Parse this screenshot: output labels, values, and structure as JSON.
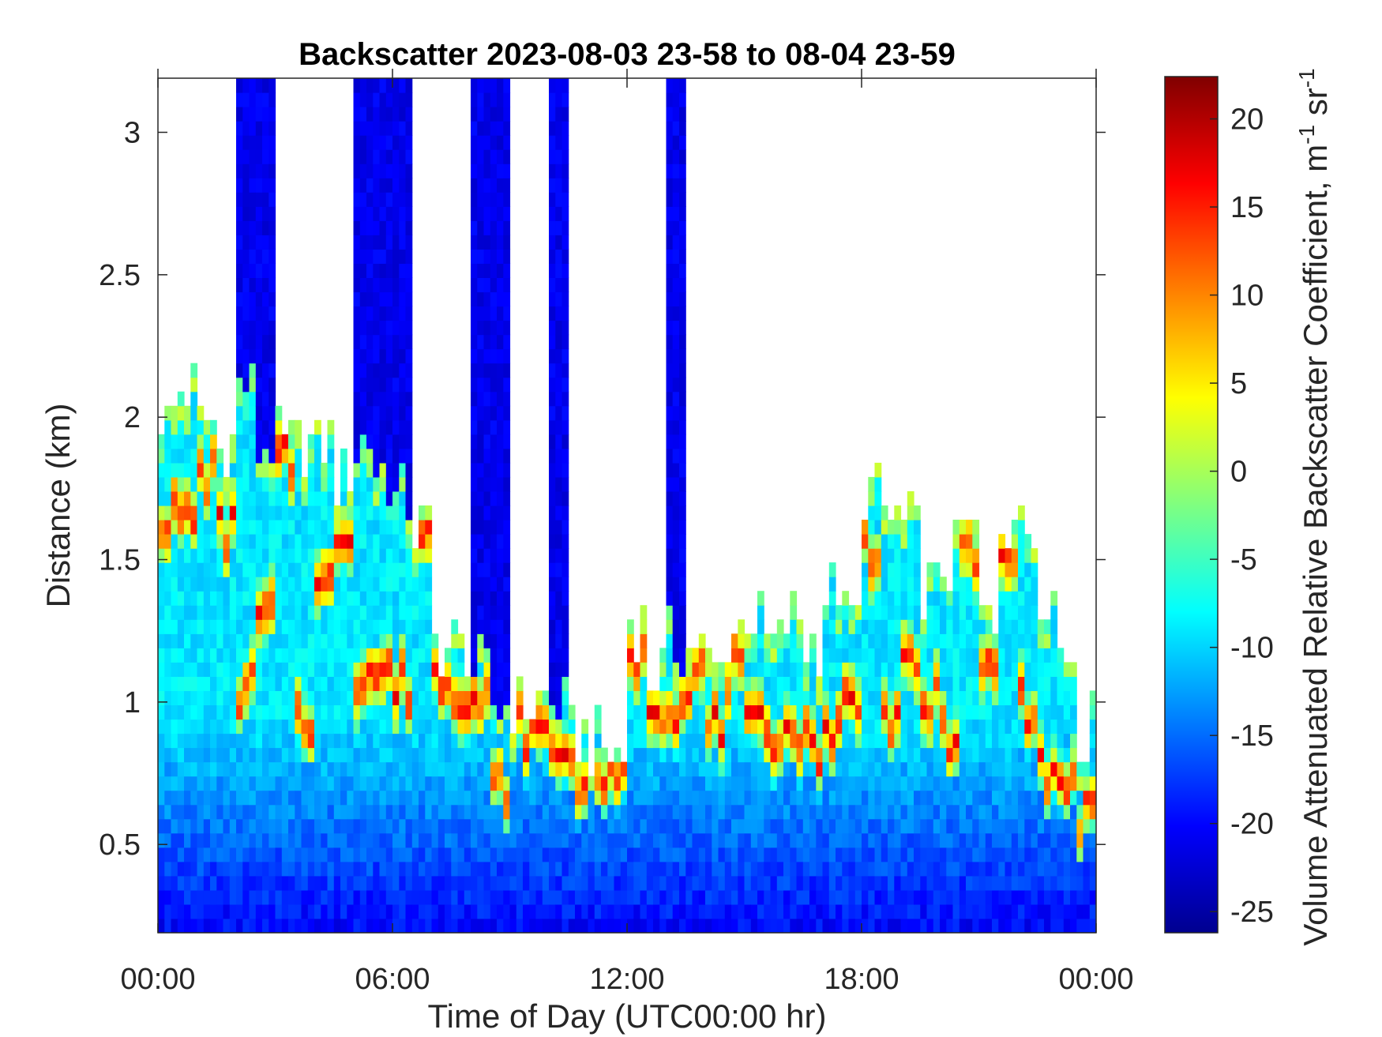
{
  "chart_data": {
    "type": "heatmap",
    "title": "Backscatter 2023-08-03 23-58 to 08-04 23-59",
    "xlabel": "Time of Day (UTC00:00 hr)",
    "ylabel": "Distance (km)",
    "xlim": [
      0,
      24
    ],
    "ylim": [
      0.19,
      3.19
    ],
    "x_ticks": [
      0,
      6,
      12,
      18,
      24
    ],
    "x_tick_labels": [
      "00:00",
      "06:00",
      "12:00",
      "18:00",
      "00:00"
    ],
    "y_ticks": [
      0.5,
      1,
      1.5,
      2,
      2.5,
      3
    ],
    "y_tick_labels": [
      "0.5",
      "1",
      "1.5",
      "2",
      "2.5",
      "3"
    ],
    "colorbar": {
      "label": "Volume Attenuated Relative Backscatter Coefficient, m",
      "unit_exp1": "-1",
      "unit2": " sr",
      "unit_exp2": "-1",
      "colormap": "jet",
      "clim": [
        -26.2,
        22.4
      ],
      "ticks": [
        -25,
        -20,
        -15,
        -10,
        -5,
        0,
        5,
        10,
        15,
        20
      ],
      "tick_labels": [
        "-25",
        "-20",
        "-15",
        "-10",
        "-5",
        "0",
        "5",
        "10",
        "15",
        "20"
      ]
    },
    "time_step_hr": 0.5,
    "columns_time_hr": [
      0,
      0.5,
      1,
      1.5,
      2,
      2.5,
      3,
      3.5,
      4,
      4.5,
      5,
      5.5,
      6,
      6.5,
      7,
      7.5,
      8,
      8.5,
      9,
      9.5,
      10,
      10.5,
      11,
      11.5,
      12,
      12.5,
      13,
      13.5,
      14,
      14.5,
      15,
      15.5,
      16,
      16.5,
      17,
      17.5,
      18,
      18.5,
      19,
      19.5,
      20,
      20.5,
      21,
      21.5,
      22,
      22.5,
      23,
      23.5
    ],
    "aerosol_top_km": [
      2.0,
      2.1,
      2.0,
      1.9,
      2.1,
      1.9,
      1.9,
      1.9,
      1.9,
      1.8,
      1.9,
      1.8,
      1.7,
      1.6,
      1.2,
      1.2,
      1.1,
      1.0,
      1.0,
      1.0,
      1.0,
      0.9,
      0.85,
      0.8,
      1.28,
      1.1,
      1.2,
      1.2,
      1.1,
      1.25,
      1.3,
      1.2,
      1.3,
      1.2,
      1.4,
      1.3,
      1.75,
      1.65,
      1.6,
      1.4,
      1.5,
      1.6,
      1.3,
      1.65,
      1.6,
      1.4,
      1.2,
      0.9
    ],
    "peak_layer_km": [
      1.65,
      1.65,
      1.8,
      1.6,
      1.05,
      1.3,
      1.85,
      0.95,
      1.4,
      1.6,
      1.1,
      1.1,
      1.05,
      1.6,
      1.1,
      1.05,
      1.0,
      0.7,
      0.9,
      0.9,
      0.85,
      0.75,
      0.75,
      0.7,
      1.15,
      1.0,
      1.0,
      1.1,
      0.9,
      1.1,
      0.9,
      0.9,
      0.9,
      0.85,
      0.9,
      1.0,
      1.55,
      0.95,
      1.1,
      1.0,
      0.9,
      1.5,
      1.1,
      1.5,
      1.0,
      0.75,
      0.7,
      0.6
    ],
    "peak_value": 14,
    "background_near_ground": -23,
    "cloud_columns_hr": [
      [
        2.0,
        3.0
      ],
      [
        5.0,
        5.5
      ],
      [
        5.5,
        6.5
      ],
      [
        8.0,
        9.0
      ],
      [
        10.0,
        10.5
      ],
      [
        13.0,
        13.5
      ]
    ],
    "cloud_column_value": -21
  }
}
